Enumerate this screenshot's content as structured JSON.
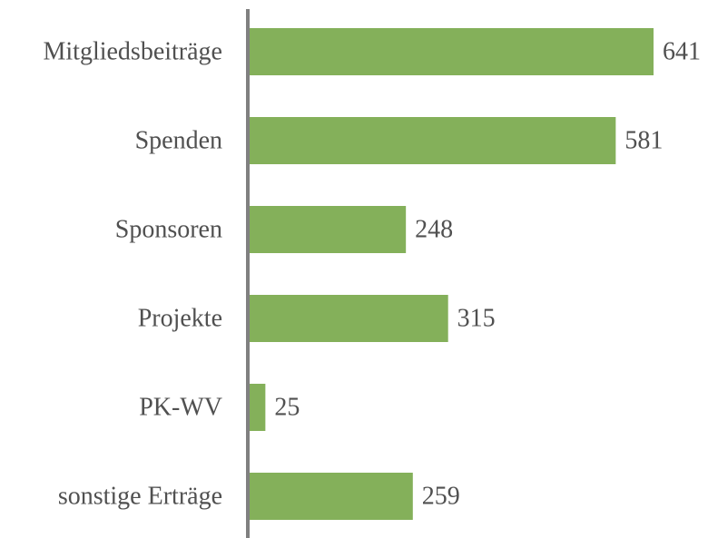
{
  "chart_data": {
    "type": "bar",
    "orientation": "horizontal",
    "categories": [
      "Mitgliedsbeiträge",
      "Spenden",
      "Sponsoren",
      "Projekte",
      "PK-WV",
      "sonstige Erträge"
    ],
    "values": [
      641,
      581,
      248,
      315,
      25,
      259
    ],
    "color": "#84b05a"
  }
}
